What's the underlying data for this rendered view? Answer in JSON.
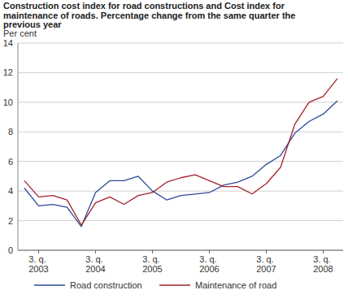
{
  "chart_data": {
    "type": "line",
    "title": "Construction cost index for road constructions and Cost index for maintenance of roads. Percentage change from the same quarter the previous year",
    "y_label": "Per cent",
    "categories": [
      null,
      "3. q. 2003",
      null,
      null,
      null,
      "3. q. 2004",
      null,
      null,
      null,
      "3. q. 2005",
      null,
      null,
      null,
      "3. q. 2006",
      null,
      null,
      null,
      "3. q. 2007",
      null,
      null,
      null,
      "3. q. 2008",
      null
    ],
    "series": [
      {
        "name": "Road construction",
        "color": "#2b4a9b",
        "values": [
          4.2,
          3.0,
          3.1,
          2.9,
          1.6,
          3.9,
          4.7,
          4.7,
          5.0,
          4.0,
          3.4,
          3.7,
          3.8,
          3.9,
          4.4,
          4.6,
          5.0,
          5.8,
          6.4,
          7.9,
          8.7,
          9.2,
          10.1
        ]
      },
      {
        "name": "Maintenance of road",
        "color": "#a3222c",
        "values": [
          4.7,
          3.6,
          3.7,
          3.4,
          1.7,
          3.2,
          3.6,
          3.1,
          3.7,
          3.9,
          4.6,
          4.9,
          5.1,
          4.7,
          4.3,
          4.3,
          3.8,
          4.5,
          5.6,
          8.5,
          10.0,
          10.4,
          11.6
        ]
      }
    ],
    "ylim": [
      0,
      14
    ],
    "yticks": [
      0,
      2,
      4,
      6,
      8,
      10,
      12,
      14
    ],
    "grid": true,
    "legend": "bottom"
  }
}
